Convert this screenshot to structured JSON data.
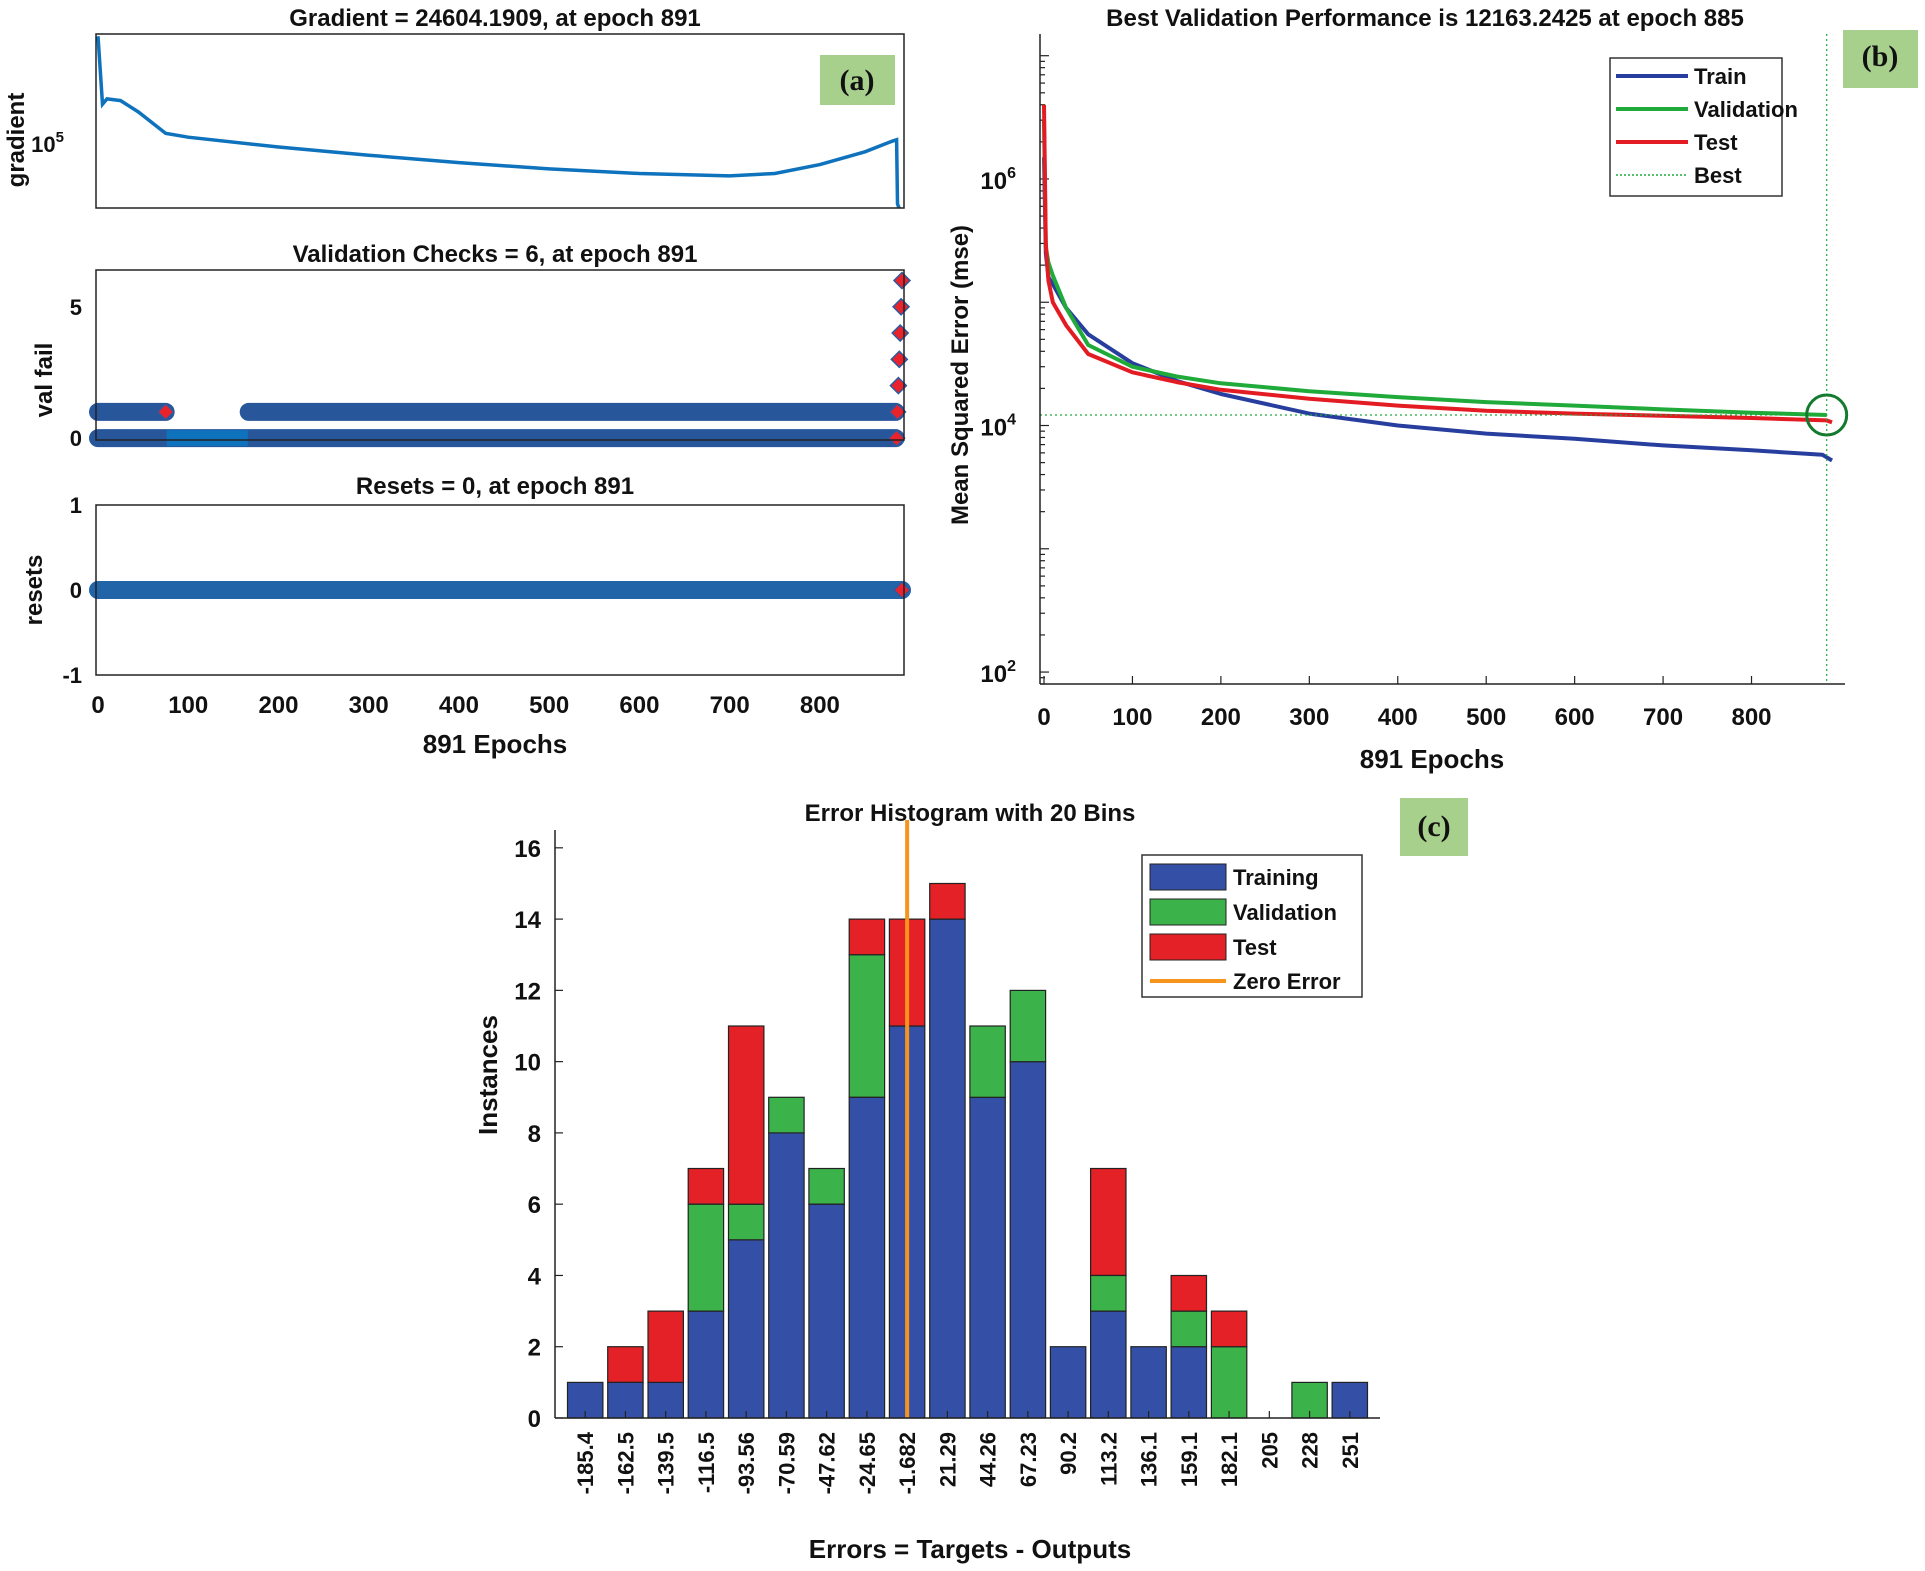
{
  "colors": {
    "train": "#283e9e",
    "validation": "#1faa3a",
    "test": "#e31b23",
    "training_bar": "#3450a6",
    "validation_bar": "#3cb34a",
    "test_bar": "#e42126",
    "zero_error": "#f7941d",
    "matlab_blue": "#0f72bd",
    "marker_red": "#e8232c",
    "label_bg": "#a8d08d"
  },
  "chart_data": [
    {
      "panel": "(a)",
      "type": "line",
      "title": "Gradient = 24604.1909, at epoch 891",
      "ylabel": "gradient",
      "yscale": "log",
      "ytick_label": "10",
      "ytick_exp": "5",
      "ytick_value": 100000,
      "ylim": [
        28000,
        520000
      ],
      "xlim": [
        0,
        891
      ],
      "x": [
        0,
        5,
        10,
        25,
        45,
        75,
        100,
        200,
        300,
        400,
        500,
        600,
        700,
        750,
        800,
        850,
        880,
        885,
        886,
        891
      ],
      "y": [
        500000,
        160000,
        175000,
        170000,
        140000,
        98000,
        92000,
        78000,
        68000,
        60000,
        54000,
        50000,
        48000,
        50000,
        58000,
        72000,
        86000,
        88000,
        30000,
        24604
      ]
    },
    {
      "type": "scatter",
      "title": "Validation Checks = 6, at epoch 891",
      "ylabel": "val fail",
      "yticks": [
        0,
        5
      ],
      "ylim": [
        0,
        6
      ],
      "segments": [
        {
          "y": 0,
          "x_start": 0,
          "x_end": 884
        },
        {
          "y": 1,
          "x_start": 0,
          "x_end": 75
        },
        {
          "y": 1,
          "x_start": 167,
          "x_end": 884
        }
      ],
      "red_points": [
        {
          "x": 75,
          "y": 1
        },
        {
          "x": 885,
          "y": 0
        },
        {
          "x": 886,
          "y": 1
        },
        {
          "x": 887,
          "y": 2
        },
        {
          "x": 888,
          "y": 3
        },
        {
          "x": 889,
          "y": 4
        },
        {
          "x": 890,
          "y": 5
        },
        {
          "x": 891,
          "y": 6
        }
      ]
    },
    {
      "type": "scatter",
      "title": "Resets = 0, at epoch 891",
      "ylabel": "resets",
      "yticks": [
        -1,
        0,
        1
      ],
      "ylim": [
        -1,
        1
      ],
      "xlabel": "891 Epochs",
      "xticks": [
        0,
        100,
        200,
        300,
        400,
        500,
        600,
        700,
        800
      ],
      "xlim": [
        0,
        891
      ],
      "segments": [
        {
          "y": 0,
          "x_start": 0,
          "x_end": 891
        }
      ],
      "red_points": [
        {
          "x": 891,
          "y": 0
        }
      ]
    },
    {
      "panel": "(b)",
      "type": "line",
      "title": "Best Validation Performance is 12163.2425 at epoch 885",
      "xlabel": "891 Epochs",
      "ylabel": "Mean Squared Error  (mse)",
      "yscale": "log",
      "ylim": [
        80,
        15000000
      ],
      "xlim": [
        0,
        891
      ],
      "xticks": [
        0,
        100,
        200,
        300,
        400,
        500,
        600,
        700,
        800
      ],
      "yticks": [
        {
          "label": "10",
          "exp": "2",
          "value": 100
        },
        {
          "label": "10",
          "exp": "4",
          "value": 10000
        },
        {
          "label": "10",
          "exp": "6",
          "value": 1000000
        }
      ],
      "best": {
        "epoch": 885,
        "value": 12163.2425
      },
      "legend": [
        "Train",
        "Validation",
        "Test",
        "Best"
      ],
      "series": [
        {
          "name": "Train",
          "x": [
            0,
            2,
            5,
            10,
            25,
            50,
            100,
            150,
            200,
            300,
            400,
            500,
            600,
            700,
            800,
            880,
            891
          ],
          "y": [
            1500000,
            250000,
            160000,
            140000,
            90000,
            55000,
            32000,
            23000,
            18000,
            12500,
            10000,
            8600,
            7800,
            6900,
            6300,
            5800,
            5200
          ]
        },
        {
          "name": "Validation",
          "x": [
            0,
            2,
            5,
            10,
            25,
            50,
            100,
            150,
            200,
            300,
            400,
            500,
            600,
            700,
            800,
            885
          ],
          "y": [
            3000000,
            280000,
            210000,
            165000,
            90000,
            45000,
            30000,
            25000,
            22000,
            19000,
            17000,
            15500,
            14500,
            13500,
            12700,
            12163
          ]
        },
        {
          "name": "Test",
          "x": [
            0,
            2,
            5,
            10,
            25,
            50,
            100,
            150,
            200,
            300,
            400,
            500,
            600,
            700,
            800,
            885,
            891
          ],
          "y": [
            4000000,
            300000,
            150000,
            100000,
            65000,
            38000,
            27000,
            22500,
            19500,
            16500,
            14500,
            13200,
            12500,
            12000,
            11500,
            11000,
            10600
          ]
        }
      ]
    },
    {
      "panel": "(c)",
      "type": "bar",
      "title": "Error Histogram with 20 Bins",
      "xlabel": "Errors = Targets - Outputs",
      "ylabel": "Instances",
      "ylim": [
        0,
        16.5
      ],
      "yticks": [
        0,
        2,
        4,
        6,
        8,
        10,
        12,
        14,
        16
      ],
      "zero_error_bin": -1.682,
      "categories": [
        "-185.4",
        "-162.5",
        "-139.5",
        "-116.5",
        "-93.56",
        "-70.59",
        "-47.62",
        "-24.65",
        "-1.682",
        "21.29",
        "44.26",
        "67.23",
        "90.2",
        "113.2",
        "136.1",
        "159.1",
        "182.1",
        "205",
        "228",
        "251"
      ],
      "series": [
        {
          "name": "Training",
          "values": [
            1,
            1,
            1,
            3,
            5,
            8,
            6,
            9,
            11,
            14,
            9,
            10,
            2,
            3,
            2,
            2,
            0,
            0,
            0,
            1
          ]
        },
        {
          "name": "Validation",
          "values": [
            0,
            0,
            0,
            3,
            1,
            1,
            1,
            4,
            0,
            0,
            2,
            2,
            0,
            1,
            0,
            1,
            2,
            0,
            1,
            0
          ]
        },
        {
          "name": "Test",
          "values": [
            0,
            1,
            2,
            1,
            5,
            0,
            0,
            1,
            3,
            1,
            0,
            0,
            0,
            3,
            0,
            1,
            1,
            0,
            0,
            0
          ]
        }
      ],
      "legend": [
        "Training",
        "Validation",
        "Test",
        "Zero Error"
      ]
    }
  ],
  "labels": {
    "a": "(a)",
    "b": "(b)",
    "c": "(c)"
  }
}
